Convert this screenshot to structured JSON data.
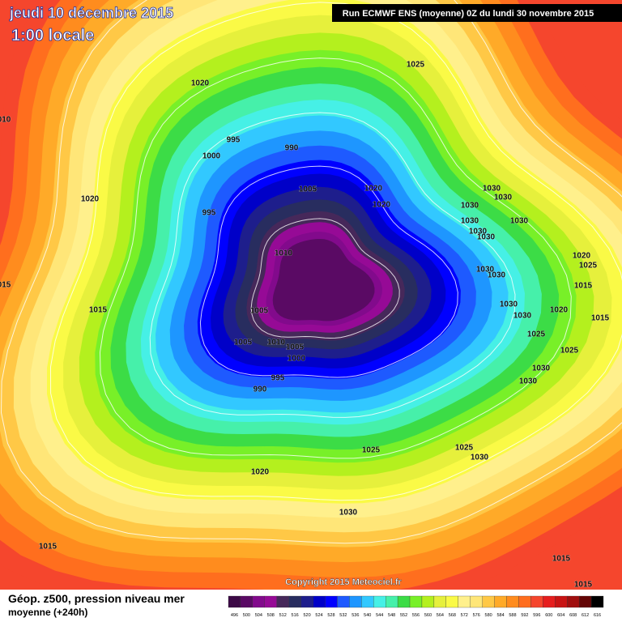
{
  "header": {
    "date": "jeudi 10 décembre 2015",
    "time": "1:00 locale",
    "run": "Run ECMWF ENS (moyenne) 0Z du lundi 30 novembre 2015"
  },
  "isobar_labels": [
    "1025",
    "1020",
    "010",
    "995",
    "990",
    "1000",
    "1005",
    "1020",
    "1020",
    "1030",
    "1030",
    "1020",
    "995",
    "1030",
    "1030",
    "1030",
    "1030",
    "1030",
    "1010",
    "1020",
    "1025",
    "1030",
    "1030",
    "015",
    "1015",
    "1015",
    "1005",
    "1030",
    "1020",
    "1030",
    "1015",
    "1025",
    "1005",
    "1010",
    "1005",
    "1000",
    "1025",
    "1030",
    "995",
    "1030",
    "990",
    "1025",
    "1025",
    "1030",
    "1020",
    "1030",
    "1015",
    "1015",
    "1015"
  ],
  "copyright": "Copyright 2015 Meteociel.fr",
  "footer": {
    "title": "Géop. z500, pression niveau mer",
    "subtitle": "moyenne  (+240h)"
  },
  "legend": {
    "labels": [
      "496",
      "500",
      "504",
      "508",
      "512",
      "516",
      "520",
      "524",
      "528",
      "532",
      "536",
      "540",
      "544",
      "548",
      "552",
      "556",
      "560",
      "564",
      "568",
      "572",
      "576",
      "580",
      "584",
      "588",
      "592",
      "596",
      "600",
      "604",
      "608",
      "612",
      "616"
    ],
    "colors": [
      "#3c0a46",
      "#5a0a64",
      "#820a8c",
      "#960a96",
      "#46285a",
      "#282d5f",
      "#1e1e8c",
      "#0000c8",
      "#0000ff",
      "#1e5aff",
      "#1e96ff",
      "#32c8ff",
      "#46f0e6",
      "#46f0aa",
      "#3cdc46",
      "#78f028",
      "#b4f01e",
      "#e6f03c",
      "#fafa46",
      "#fff08c",
      "#ffe678",
      "#ffc846",
      "#ffaa28",
      "#ff8c1e",
      "#ff6e1e",
      "#f5462d",
      "#e61e1e",
      "#c81414",
      "#a00f0f",
      "#640505",
      "#000000"
    ]
  }
}
